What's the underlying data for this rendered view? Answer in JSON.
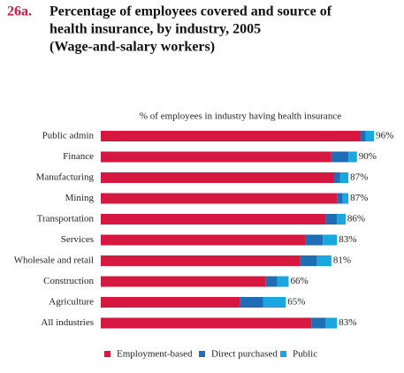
{
  "chart_data": {
    "type": "stacked-bar-horizontal",
    "title_number": "26a.",
    "title": [
      "Percentage of employees covered and source of",
      "health insurance, by industry, 2005",
      "(Wage-and-salary workers)"
    ],
    "subtitle": "% of employees in industry having health insurance",
    "categories": [
      "Public admin",
      "Finance",
      "Manufacturing",
      "Mining",
      "Transportation",
      "Services",
      "Wholesale and retail",
      "Construction",
      "Agriculture",
      "All industries"
    ],
    "series": [
      {
        "name": "Employment-based",
        "color": "#d6173f",
        "values": [
          91,
          81,
          82,
          83,
          79,
          72,
          70,
          58,
          49,
          74
        ]
      },
      {
        "name": "Direct purchased",
        "color": "#1f6db5",
        "values": [
          2,
          6,
          2,
          2,
          4,
          6,
          6,
          4,
          8,
          5
        ]
      },
      {
        "name": "Public",
        "color": "#1aa6de",
        "values": [
          3,
          3,
          3,
          2,
          3,
          5,
          5,
          4,
          8,
          4
        ]
      }
    ],
    "totals": [
      96,
      90,
      87,
      87,
      86,
      83,
      81,
      66,
      65,
      83
    ],
    "total_labels": [
      "96%",
      "90%",
      "87%",
      "87%",
      "86%",
      "83%",
      "81%",
      "66%",
      "65%",
      "83%"
    ]
  }
}
